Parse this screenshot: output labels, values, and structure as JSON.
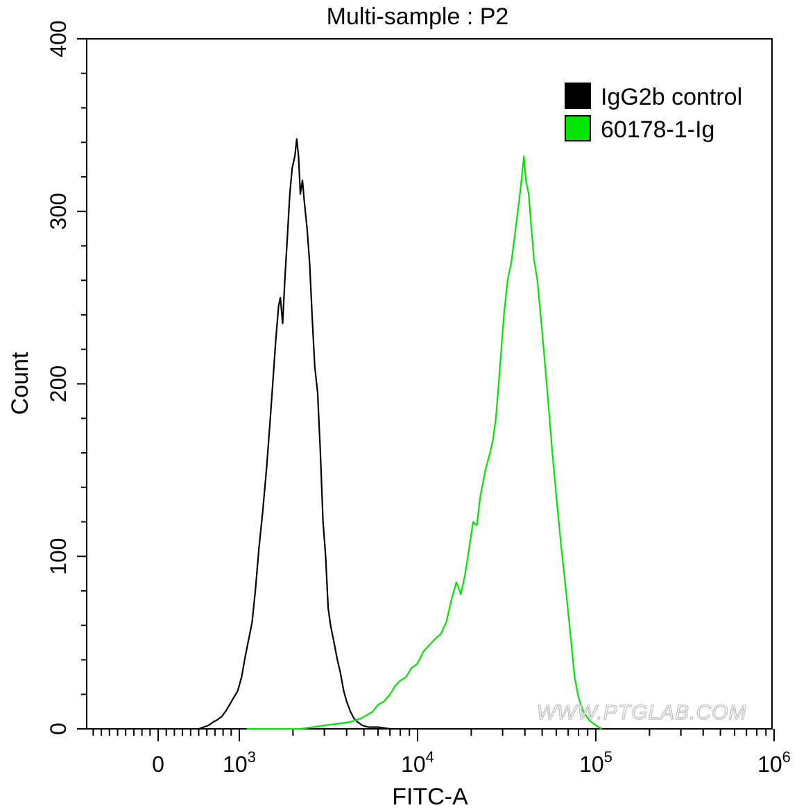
{
  "chart_data": {
    "type": "line",
    "title": "Multi-sample : P2",
    "xlabel": "FITC-A",
    "ylabel": "Count",
    "x_scale": "biexponential (log above 10^3)",
    "ylim": [
      0,
      400
    ],
    "y_ticks": [
      0,
      100,
      200,
      300,
      400
    ],
    "x_ticks": [
      {
        "value": 0,
        "base": "0",
        "exp": ""
      },
      {
        "value": 1000,
        "base": "10",
        "exp": "3"
      },
      {
        "value": 10000,
        "base": "10",
        "exp": "4"
      },
      {
        "value": 100000,
        "base": "10",
        "exp": "5"
      },
      {
        "value": 1000000,
        "base": "10",
        "exp": "6"
      }
    ],
    "grid": false,
    "legend_position": "top-right",
    "series": [
      {
        "name": "IgG2b control",
        "color": "#000000",
        "points": [
          [
            500,
            0
          ],
          [
            560,
            1
          ],
          [
            620,
            2
          ],
          [
            680,
            4
          ],
          [
            720,
            5
          ],
          [
            780,
            7
          ],
          [
            830,
            10
          ],
          [
            880,
            14
          ],
          [
            930,
            18
          ],
          [
            980,
            22
          ],
          [
            1030,
            30
          ],
          [
            1080,
            42
          ],
          [
            1130,
            52
          ],
          [
            1180,
            62
          ],
          [
            1230,
            80
          ],
          [
            1290,
            105
          ],
          [
            1350,
            125
          ],
          [
            1420,
            150
          ],
          [
            1480,
            175
          ],
          [
            1540,
            200
          ],
          [
            1600,
            225
          ],
          [
            1660,
            245
          ],
          [
            1700,
            250
          ],
          [
            1750,
            235
          ],
          [
            1800,
            260
          ],
          [
            1860,
            285
          ],
          [
            1920,
            310
          ],
          [
            1980,
            325
          ],
          [
            2050,
            332
          ],
          [
            2100,
            342
          ],
          [
            2150,
            332
          ],
          [
            2200,
            310
          ],
          [
            2260,
            318
          ],
          [
            2320,
            305
          ],
          [
            2400,
            290
          ],
          [
            2480,
            270
          ],
          [
            2560,
            240
          ],
          [
            2650,
            210
          ],
          [
            2750,
            195
          ],
          [
            2850,
            160
          ],
          [
            2950,
            120
          ],
          [
            3050,
            100
          ],
          [
            3150,
            70
          ],
          [
            3250,
            60
          ],
          [
            3400,
            50
          ],
          [
            3550,
            40
          ],
          [
            3700,
            32
          ],
          [
            3850,
            22
          ],
          [
            4000,
            16
          ],
          [
            4200,
            10
          ],
          [
            4400,
            6
          ],
          [
            4600,
            4
          ],
          [
            4900,
            2
          ],
          [
            5300,
            1
          ],
          [
            6000,
            1
          ],
          [
            7000,
            0
          ],
          [
            8000,
            0
          ],
          [
            9000,
            0
          ]
        ]
      },
      {
        "name": "60178-1-Ig",
        "color": "#00e600",
        "points": [
          [
            1100,
            0
          ],
          [
            2200,
            0
          ],
          [
            3000,
            2
          ],
          [
            3600,
            3
          ],
          [
            4200,
            4
          ],
          [
            4800,
            6
          ],
          [
            5200,
            8
          ],
          [
            5600,
            10
          ],
          [
            6000,
            14
          ],
          [
            6500,
            16
          ],
          [
            7000,
            20
          ],
          [
            7500,
            25
          ],
          [
            8000,
            28
          ],
          [
            8600,
            30
          ],
          [
            9200,
            35
          ],
          [
            10000,
            38
          ],
          [
            10800,
            45
          ],
          [
            11500,
            48
          ],
          [
            12500,
            52
          ],
          [
            13500,
            55
          ],
          [
            14500,
            62
          ],
          [
            15500,
            75
          ],
          [
            16500,
            85
          ],
          [
            17500,
            78
          ],
          [
            18500,
            90
          ],
          [
            19500,
            105
          ],
          [
            20500,
            120
          ],
          [
            21500,
            118
          ],
          [
            22500,
            135
          ],
          [
            24000,
            150
          ],
          [
            25500,
            160
          ],
          [
            26500,
            168
          ],
          [
            27500,
            180
          ],
          [
            28500,
            200
          ],
          [
            29500,
            220
          ],
          [
            30500,
            240
          ],
          [
            32000,
            260
          ],
          [
            33500,
            270
          ],
          [
            35000,
            285
          ],
          [
            36500,
            300
          ],
          [
            38000,
            315
          ],
          [
            39500,
            332
          ],
          [
            40500,
            318
          ],
          [
            42000,
            310
          ],
          [
            43500,
            290
          ],
          [
            45000,
            272
          ],
          [
            47000,
            260
          ],
          [
            49000,
            240
          ],
          [
            51500,
            215
          ],
          [
            54000,
            190
          ],
          [
            57000,
            160
          ],
          [
            60000,
            135
          ],
          [
            64000,
            105
          ],
          [
            68000,
            80
          ],
          [
            72000,
            55
          ],
          [
            76000,
            30
          ],
          [
            80000,
            18
          ],
          [
            85000,
            10
          ],
          [
            92000,
            5
          ],
          [
            100000,
            2
          ],
          [
            108000,
            0
          ]
        ]
      }
    ],
    "watermark": "WWW.PTGLAB.COM"
  }
}
